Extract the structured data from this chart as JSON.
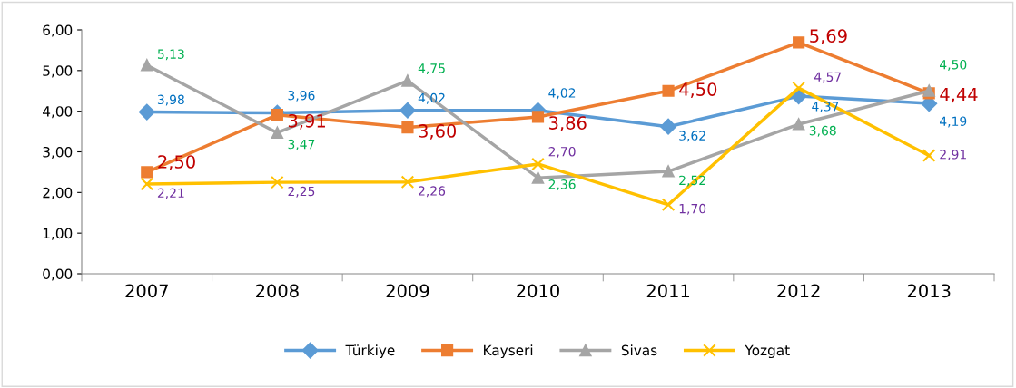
{
  "chart_data": {
    "type": "line",
    "categories": [
      "2007",
      "2008",
      "2009",
      "2010",
      "2011",
      "2012",
      "2013"
    ],
    "series": [
      {
        "name": "Türkiye",
        "color": "#5b9bd5",
        "marker": "diamond",
        "values": [
          3.98,
          3.96,
          4.02,
          4.02,
          3.62,
          4.37,
          4.19
        ],
        "value_labels": [
          "3,98",
          "3,96",
          "4,02",
          "4,02",
          "3,62",
          "4,37",
          "4,19"
        ]
      },
      {
        "name": "Kayseri",
        "color": "#ed7d31",
        "marker": "square",
        "values": [
          2.5,
          3.91,
          3.6,
          3.86,
          4.5,
          5.69,
          4.44
        ],
        "value_labels": [
          "2,50",
          "3,91",
          "3,60",
          "3,86",
          "4,50",
          "5,69",
          "4,44"
        ]
      },
      {
        "name": "Sivas",
        "color": "#a5a5a5",
        "marker": "triangle",
        "values": [
          5.13,
          3.47,
          4.75,
          2.36,
          2.52,
          3.68,
          4.5
        ],
        "value_labels": [
          "5,13",
          "3,47",
          "4,75",
          "2,36",
          "2,52",
          "3,68",
          "4,50"
        ]
      },
      {
        "name": "Yozgat",
        "color": "#ffc000",
        "marker": "cross",
        "values": [
          2.21,
          2.25,
          2.26,
          2.7,
          1.7,
          4.57,
          2.91
        ],
        "value_labels": [
          "2,21",
          "2,25",
          "2,26",
          "2,70",
          "1,70",
          "4,57",
          "2,91"
        ]
      }
    ],
    "ylim": [
      0,
      6
    ],
    "yticks": [
      {
        "value": 0,
        "label": "0,00"
      },
      {
        "value": 1,
        "label": "1,00"
      },
      {
        "value": 2,
        "label": "2,00"
      },
      {
        "value": 3,
        "label": "3,00"
      },
      {
        "value": 4,
        "label": "4,00"
      },
      {
        "value": 5,
        "label": "5,00"
      },
      {
        "value": 6,
        "label": "6,00"
      }
    ],
    "grid": false,
    "legend": "bottom"
  }
}
